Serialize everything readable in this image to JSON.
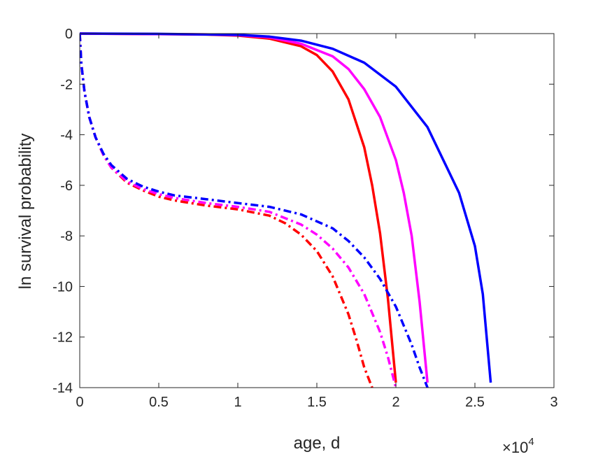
{
  "chart_data": {
    "type": "line",
    "title": "",
    "xlabel": "age, d",
    "ylabel": "ln survival probability",
    "x_exponent_label": "×10",
    "x_exponent_power": "4",
    "xlim": [
      0,
      3
    ],
    "ylim": [
      -14,
      0
    ],
    "xticks": [
      0,
      0.5,
      1,
      1.5,
      2,
      2.5,
      3
    ],
    "xtick_labels": [
      "0",
      "0.5",
      "1",
      "1.5",
      "2",
      "2.5",
      "3"
    ],
    "yticks": [
      0,
      -2,
      -4,
      -6,
      -8,
      -10,
      -12,
      -14
    ],
    "ytick_labels": [
      "0",
      "-2",
      "-4",
      "-6",
      "-8",
      "-10",
      "-12",
      "-14"
    ],
    "grid": false,
    "legend": "none",
    "series": [
      {
        "color": "#ff0000",
        "style": "solid",
        "x": [
          0,
          0.5,
          0.8,
          1.0,
          1.2,
          1.4,
          1.5,
          1.6,
          1.7,
          1.8,
          1.85,
          1.9,
          1.95,
          2.0
        ],
        "y": [
          0,
          -0.02,
          -0.04,
          -0.08,
          -0.2,
          -0.5,
          -0.85,
          -1.5,
          -2.6,
          -4.5,
          -6.0,
          -7.9,
          -10.5,
          -13.8
        ]
      },
      {
        "color": "#ff00ff",
        "style": "solid",
        "x": [
          0,
          0.5,
          0.8,
          1.0,
          1.2,
          1.4,
          1.6,
          1.7,
          1.8,
          1.9,
          2.0,
          2.05,
          2.1,
          2.15,
          2.2
        ],
        "y": [
          0,
          -0.02,
          -0.03,
          -0.06,
          -0.15,
          -0.4,
          -0.9,
          -1.4,
          -2.2,
          -3.3,
          -5.0,
          -6.3,
          -8.0,
          -10.6,
          -13.8
        ]
      },
      {
        "color": "#0000ff",
        "style": "solid",
        "x": [
          0,
          0.5,
          1.0,
          1.2,
          1.4,
          1.6,
          1.8,
          2.0,
          2.2,
          2.4,
          2.5,
          2.55,
          2.6
        ],
        "y": [
          0,
          -0.01,
          -0.05,
          -0.12,
          -0.28,
          -0.6,
          -1.15,
          -2.1,
          -3.7,
          -6.3,
          -8.4,
          -10.3,
          -13.8
        ]
      },
      {
        "color": "#ff0000",
        "style": "dashdot",
        "x": [
          0,
          0.01,
          0.03,
          0.06,
          0.1,
          0.15,
          0.2,
          0.3,
          0.4,
          0.5,
          0.6,
          0.8,
          1.0,
          1.2,
          1.3,
          1.4,
          1.5,
          1.6,
          1.7,
          1.75,
          1.8,
          1.85
        ],
        "y": [
          0,
          -1.2,
          -2.3,
          -3.3,
          -4.1,
          -4.8,
          -5.3,
          -5.9,
          -6.2,
          -6.45,
          -6.6,
          -6.8,
          -6.95,
          -7.2,
          -7.5,
          -7.95,
          -8.6,
          -9.6,
          -11.1,
          -12.1,
          -13.2,
          -14
        ]
      },
      {
        "color": "#ff00ff",
        "style": "dashdot",
        "x": [
          0,
          0.01,
          0.03,
          0.06,
          0.1,
          0.15,
          0.2,
          0.3,
          0.4,
          0.5,
          0.6,
          0.8,
          1.0,
          1.2,
          1.4,
          1.5,
          1.6,
          1.7,
          1.8,
          1.9,
          1.95,
          2.0
        ],
        "y": [
          0,
          -1.2,
          -2.3,
          -3.3,
          -4.1,
          -4.8,
          -5.3,
          -5.85,
          -6.15,
          -6.35,
          -6.5,
          -6.7,
          -6.85,
          -7.05,
          -7.55,
          -7.95,
          -8.5,
          -9.25,
          -10.3,
          -11.8,
          -12.8,
          -14
        ]
      },
      {
        "color": "#0000ff",
        "style": "dashdot",
        "x": [
          0,
          0.01,
          0.03,
          0.06,
          0.1,
          0.15,
          0.2,
          0.3,
          0.4,
          0.5,
          0.6,
          0.8,
          1.0,
          1.2,
          1.4,
          1.6,
          1.7,
          1.8,
          1.9,
          2.0,
          2.1,
          2.15,
          2.2
        ],
        "y": [
          0,
          -1.2,
          -2.3,
          -3.3,
          -4.1,
          -4.75,
          -5.2,
          -5.75,
          -6.05,
          -6.25,
          -6.4,
          -6.55,
          -6.7,
          -6.85,
          -7.15,
          -7.7,
          -8.2,
          -8.85,
          -9.7,
          -10.8,
          -12.3,
          -13.2,
          -14
        ]
      }
    ]
  }
}
